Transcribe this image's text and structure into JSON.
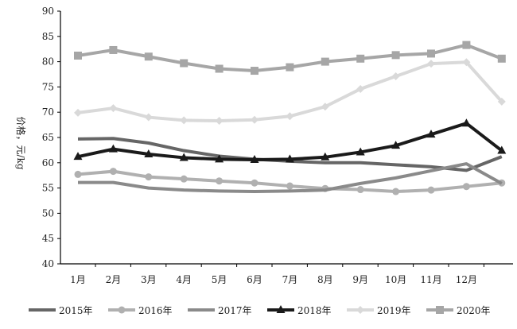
{
  "chart_data": {
    "type": "line",
    "title": "",
    "xlabel": "",
    "ylabel": "价格，元/kg",
    "ylim": [
      40,
      90
    ],
    "yticks": [
      "40",
      "45",
      "50",
      "55",
      "60",
      "65",
      "70",
      "75",
      "80",
      "85",
      "90"
    ],
    "categories": [
      "1月",
      "2月",
      "3月",
      "4月",
      "5月",
      "6月",
      "7月",
      "8月",
      "9月",
      "10月",
      "11月",
      "12月",
      ""
    ],
    "legend_position": "bottom",
    "series": [
      {
        "name": "2015年",
        "color": "#666666",
        "marker": "none",
        "values": [
          64.7,
          64.8,
          63.9,
          62.4,
          61.3,
          60.7,
          60.3,
          60.0,
          60.0,
          59.6,
          59.2,
          58.5,
          61.2
        ]
      },
      {
        "name": "2016年",
        "color": "#b0b0b0",
        "marker": "circle",
        "values": [
          57.7,
          58.3,
          57.2,
          56.8,
          56.4,
          56.0,
          55.4,
          54.9,
          54.7,
          54.3,
          54.6,
          55.3,
          56.0
        ]
      },
      {
        "name": "2017年",
        "color": "#8a8a8a",
        "marker": "none",
        "values": [
          56.1,
          56.1,
          55.0,
          54.6,
          54.4,
          54.3,
          54.4,
          54.6,
          55.9,
          57.0,
          58.4,
          59.8,
          55.9
        ]
      },
      {
        "name": "2018年",
        "color": "#1a1a1a",
        "marker": "triangle",
        "values": [
          61.2,
          62.7,
          61.7,
          61.0,
          60.7,
          60.6,
          60.7,
          61.1,
          62.1,
          63.4,
          65.6,
          67.8,
          62.4
        ]
      },
      {
        "name": "2019年",
        "color": "#d9d9d9",
        "marker": "diamond",
        "values": [
          69.9,
          70.8,
          69.0,
          68.4,
          68.3,
          68.5,
          69.2,
          71.1,
          74.6,
          77.1,
          79.6,
          79.9,
          72.1
        ]
      },
      {
        "name": "2020年",
        "color": "#a6a6a6",
        "marker": "square",
        "values": [
          81.2,
          82.3,
          81.0,
          79.7,
          78.6,
          78.2,
          78.9,
          80.0,
          80.6,
          81.3,
          81.6,
          83.3,
          80.6
        ]
      }
    ]
  }
}
